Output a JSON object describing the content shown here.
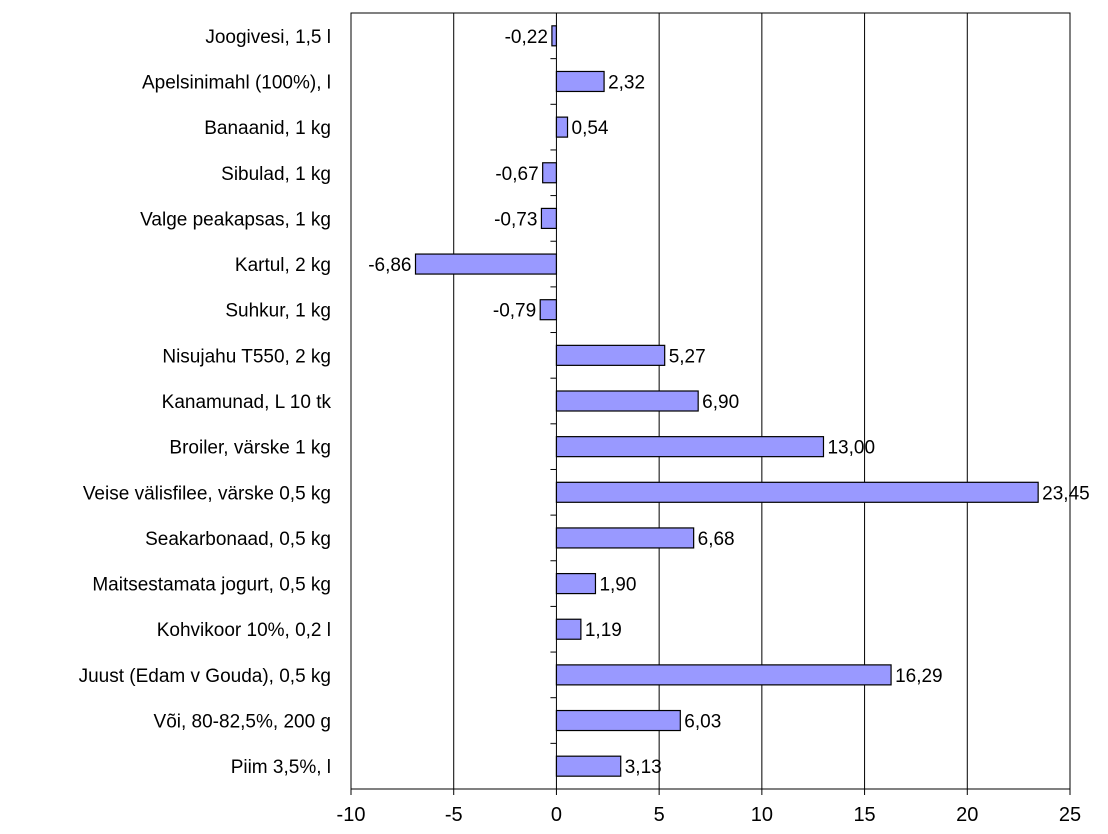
{
  "chart_data": {
    "type": "bar",
    "orientation": "horizontal",
    "categories": [
      "Joogivesi, 1,5 l",
      "Apelsinimahl (100%), l",
      "Banaanid, 1 kg",
      "Sibulad, 1 kg",
      "Valge peakapsas, 1 kg",
      "Kartul, 2 kg",
      "Suhkur, 1 kg",
      "Nisujahu T550, 2 kg",
      "Kanamunad, L 10 tk",
      "Broiler, värske 1 kg",
      "Veise välisfilee, värske 0,5 kg",
      "Seakarbonaad, 0,5 kg",
      "Maitsestamata jogurt, 0,5 kg",
      "Kohvikoor 10%, 0,2 l",
      "Juust (Edam v Gouda), 0,5 kg",
      "Või, 80-82,5%, 200 g",
      "Piim 3,5%, l"
    ],
    "values": [
      -0.22,
      2.32,
      0.54,
      -0.67,
      -0.73,
      -6.86,
      -0.79,
      5.27,
      6.9,
      13.0,
      23.45,
      6.68,
      1.9,
      1.19,
      16.29,
      6.03,
      3.13
    ],
    "value_labels": [
      "-0,22",
      "2,32",
      "0,54",
      "-0,67",
      "-0,73",
      "-6,86",
      "-0,79",
      "5,27",
      "6,90",
      "13,00",
      "23,45",
      "6,68",
      "1,90",
      "1,19",
      "16,29",
      "6,03",
      "3,13"
    ],
    "xlim": [
      -10,
      25
    ],
    "xticks": [
      -10,
      -5,
      0,
      5,
      10,
      15,
      20,
      25
    ],
    "xtick_labels": [
      "-10",
      "-5",
      "0",
      "5",
      "10",
      "15",
      "20",
      "25"
    ],
    "grid": true,
    "bar_color": "#9999ff",
    "bar_edge_color": "#000000",
    "title": "",
    "xlabel": "",
    "ylabel": ""
  }
}
